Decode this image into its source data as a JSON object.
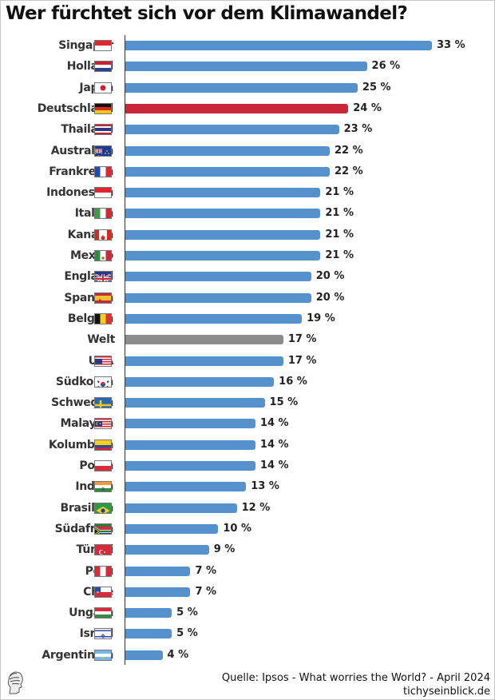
{
  "chart_data": {
    "type": "bar",
    "orientation": "horizontal",
    "title": "Wer fürchtet sich vor dem Klimawandel?",
    "unit": "%",
    "categories": [
      "Singapur",
      "Holland",
      "Japan",
      "Deutschland",
      "Thailand",
      "Australien",
      "Frankreich",
      "Indonesien",
      "Italien",
      "Kanada",
      "Mexiko",
      "England",
      "Spanien",
      "Belgien",
      "Welt",
      "USA",
      "Südkorea",
      "Schweden",
      "Malaysia",
      "Kolumbien",
      "Polen",
      "Indien",
      "Brasilien",
      "Südafrika",
      "Türkei",
      "Peru",
      "Chile",
      "Ungarn",
      "Israel",
      "Argentinien"
    ],
    "values": [
      33,
      26,
      25,
      24,
      23,
      22,
      22,
      21,
      21,
      21,
      21,
      20,
      20,
      19,
      17,
      17,
      16,
      15,
      14,
      14,
      14,
      13,
      12,
      10,
      9,
      7,
      7,
      5,
      5,
      4
    ],
    "value_labels": [
      "33 %",
      "26 %",
      "25 %",
      "24 %",
      "23 %",
      "22 %",
      "22 %",
      "21 %",
      "21 %",
      "21 %",
      "21 %",
      "20 %",
      "20 %",
      "19 %",
      "17 %",
      "17 %",
      "16 %",
      "15 %",
      "14 %",
      "14 %",
      "14 %",
      "13 %",
      "12 %",
      "10 %",
      "9 %",
      "7 %",
      "7 %",
      "5 %",
      "5 %",
      "4 %"
    ],
    "flags": [
      "flag-singapore",
      "flag-netherlands",
      "flag-japan",
      "flag-germany",
      "flag-thailand",
      "flag-australia",
      "flag-france",
      "flag-indonesia",
      "flag-italy",
      "flag-canada",
      "flag-mexico",
      "flag-uk",
      "flag-spain",
      "flag-belgium",
      "",
      "flag-usa",
      "flag-south-korea",
      "flag-sweden",
      "flag-malaysia",
      "flag-colombia",
      "flag-poland",
      "flag-india",
      "flag-brazil",
      "flag-south-africa",
      "flag-turkey",
      "flag-peru",
      "flag-chile",
      "flag-hungary",
      "flag-israel",
      "flag-argentina"
    ],
    "highlight": {
      "Deutschland": "#c8283a",
      "Welt": "#8c8c8c"
    },
    "default_color": "#5591cc",
    "xlim": [
      0,
      35
    ],
    "grid": false,
    "legend": "none"
  },
  "footer": {
    "source": "Quelle: Ipsos - What worries the World? - April 2024",
    "site": "tichyseinblick.de"
  }
}
